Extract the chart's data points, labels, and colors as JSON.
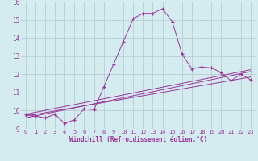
{
  "xlabel": "Windchill (Refroidissement éolien,°C)",
  "bg_color": "#d4ecf0",
  "line_color": "#993399",
  "grid_color": "#b0c8cc",
  "xlim": [
    -0.5,
    23.5
  ],
  "ylim": [
    9,
    16
  ],
  "yticks": [
    9,
    10,
    11,
    12,
    13,
    14,
    15,
    16
  ],
  "xticks": [
    0,
    1,
    2,
    3,
    4,
    5,
    6,
    7,
    8,
    9,
    10,
    11,
    12,
    13,
    14,
    15,
    16,
    17,
    18,
    19,
    20,
    21,
    22,
    23
  ],
  "series1_x": [
    0,
    1,
    2,
    3,
    4,
    5,
    6,
    7,
    8,
    9,
    10,
    11,
    12,
    13,
    14,
    15,
    16,
    17,
    18,
    19,
    20,
    21,
    22,
    23
  ],
  "series1_y": [
    9.8,
    9.7,
    9.6,
    9.8,
    9.3,
    9.5,
    10.1,
    10.05,
    11.3,
    12.55,
    13.8,
    15.05,
    15.35,
    15.35,
    15.6,
    14.9,
    13.1,
    12.3,
    12.4,
    12.35,
    12.1,
    11.65,
    12.0,
    11.7
  ],
  "series2_x": [
    0,
    23
  ],
  "series2_y": [
    9.6,
    12.15
  ],
  "series3_x": [
    0,
    23
  ],
  "series3_y": [
    9.7,
    11.85
  ],
  "series4_x": [
    0,
    23
  ],
  "series4_y": [
    9.8,
    12.25
  ]
}
